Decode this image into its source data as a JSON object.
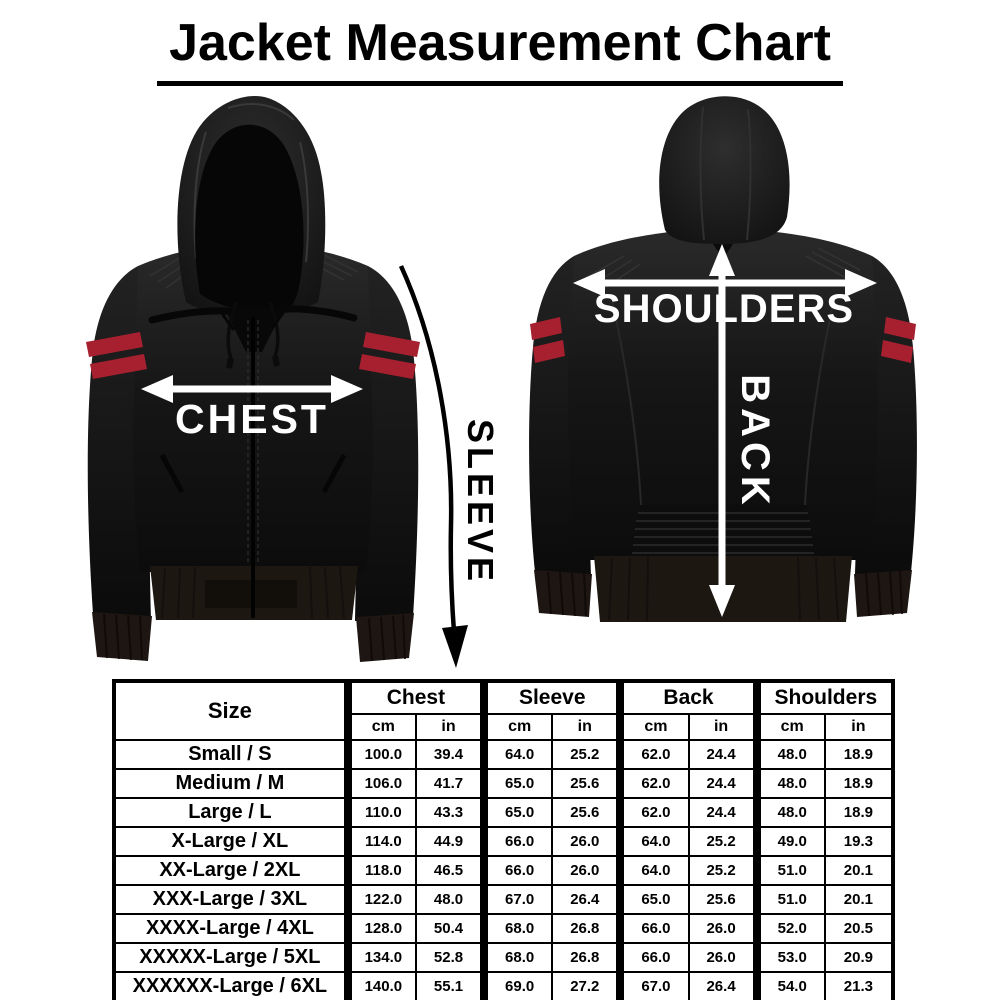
{
  "title": "Jacket Measurement Chart",
  "diagram": {
    "front": {
      "chest_label": "CHEST",
      "sleeve_label": "SLEEVE"
    },
    "back": {
      "shoulders_label": "SHOULDERS",
      "back_label": "BACK"
    },
    "stripe_color": "#a6202f",
    "arrow_white": "#ffffff",
    "arrow_black": "#000000"
  },
  "chart_data": {
    "type": "table",
    "title": "Jacket Measurement Chart",
    "size_header": "Size",
    "groups": [
      {
        "label": "Chest",
        "sub": [
          "cm",
          "in"
        ]
      },
      {
        "label": "Sleeve",
        "sub": [
          "cm",
          "in"
        ]
      },
      {
        "label": "Back",
        "sub": [
          "cm",
          "in"
        ]
      },
      {
        "label": "Shoulders",
        "sub": [
          "cm",
          "in"
        ]
      }
    ],
    "rows": [
      {
        "size": "Small / S",
        "values": [
          "100.0",
          "39.4",
          "64.0",
          "25.2",
          "62.0",
          "24.4",
          "48.0",
          "18.9"
        ]
      },
      {
        "size": "Medium / M",
        "values": [
          "106.0",
          "41.7",
          "65.0",
          "25.6",
          "62.0",
          "24.4",
          "48.0",
          "18.9"
        ]
      },
      {
        "size": "Large / L",
        "values": [
          "110.0",
          "43.3",
          "65.0",
          "25.6",
          "62.0",
          "24.4",
          "48.0",
          "18.9"
        ]
      },
      {
        "size": "X-Large / XL",
        "values": [
          "114.0",
          "44.9",
          "66.0",
          "26.0",
          "64.0",
          "25.2",
          "49.0",
          "19.3"
        ]
      },
      {
        "size": "XX-Large / 2XL",
        "values": [
          "118.0",
          "46.5",
          "66.0",
          "26.0",
          "64.0",
          "25.2",
          "51.0",
          "20.1"
        ]
      },
      {
        "size": "XXX-Large / 3XL",
        "values": [
          "122.0",
          "48.0",
          "67.0",
          "26.4",
          "65.0",
          "25.6",
          "51.0",
          "20.1"
        ]
      },
      {
        "size": "XXXX-Large / 4XL",
        "values": [
          "128.0",
          "50.4",
          "68.0",
          "26.8",
          "66.0",
          "26.0",
          "52.0",
          "20.5"
        ]
      },
      {
        "size": "XXXXX-Large / 5XL",
        "values": [
          "134.0",
          "52.8",
          "68.0",
          "26.8",
          "66.0",
          "26.0",
          "53.0",
          "20.9"
        ]
      },
      {
        "size": "XXXXXX-Large / 6XL",
        "values": [
          "140.0",
          "55.1",
          "69.0",
          "27.2",
          "67.0",
          "26.4",
          "54.0",
          "21.3"
        ]
      }
    ]
  }
}
